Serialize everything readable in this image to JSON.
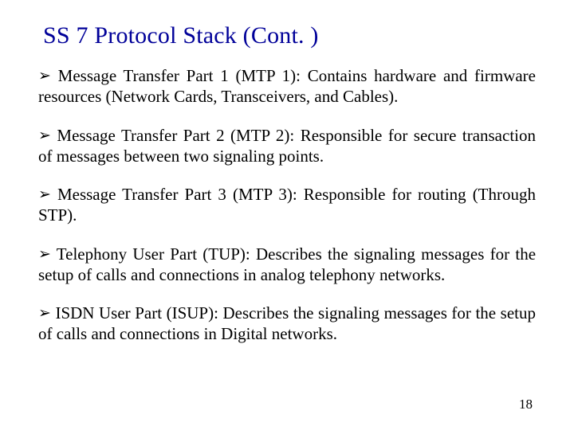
{
  "title_color": "#000099",
  "text_color": "#000000",
  "background_color": "#ffffff",
  "font_family": "Times New Roman",
  "title_fontsize": 30,
  "body_fontsize": 21,
  "bullet_glyph": "➢",
  "title": "SS 7 Protocol Stack (Cont. )",
  "bullets": [
    "Message Transfer Part 1 (MTP 1): Contains hardware and firmware resources (Network Cards, Transceivers, and Cables).",
    "Message Transfer Part 2 (MTP 2): Responsible for secure transaction of messages between two signaling points.",
    "Message Transfer Part 3 (MTP 3): Responsible for routing (Through STP).",
    "Telephony User Part (TUP): Describes the signaling messages for the setup of calls and connections in analog telephony networks.",
    "ISDN User Part (ISUP): Describes the signaling messages for the setup of calls and connections in Digital networks."
  ],
  "page_number": "18"
}
